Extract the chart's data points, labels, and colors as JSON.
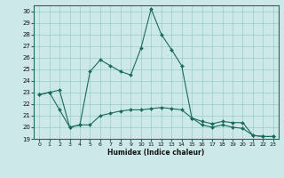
{
  "xlabel": "Humidex (Indice chaleur)",
  "background_color": "#cce8e8",
  "grid_color": "#99cccc",
  "line_color": "#1a6b5a",
  "xlim": [
    -0.5,
    23.5
  ],
  "ylim": [
    19,
    30.5
  ],
  "yticks": [
    19,
    20,
    21,
    22,
    23,
    24,
    25,
    26,
    27,
    28,
    29,
    30
  ],
  "xticks": [
    0,
    1,
    2,
    3,
    4,
    5,
    6,
    7,
    8,
    9,
    10,
    11,
    12,
    13,
    14,
    15,
    16,
    17,
    18,
    19,
    20,
    21,
    22,
    23
  ],
  "series1_x": [
    0,
    1,
    2,
    3,
    4,
    5,
    6,
    7,
    8,
    9,
    10,
    11,
    12,
    13,
    14,
    15,
    16,
    17,
    18,
    19,
    20,
    21,
    22,
    23
  ],
  "series1_y": [
    22.8,
    23.0,
    23.2,
    20.0,
    20.2,
    24.8,
    25.8,
    25.3,
    24.8,
    24.5,
    26.8,
    30.2,
    28.0,
    26.7,
    25.3,
    20.8,
    20.5,
    20.3,
    20.5,
    20.4,
    20.4,
    19.3,
    19.2,
    19.2
  ],
  "series2_x": [
    0,
    1,
    2,
    3,
    4,
    5,
    6,
    7,
    8,
    9,
    10,
    11,
    12,
    13,
    14,
    15,
    16,
    17,
    18,
    19,
    20,
    21,
    22,
    23
  ],
  "series2_y": [
    22.8,
    23.0,
    21.5,
    20.0,
    20.2,
    20.2,
    21.0,
    21.2,
    21.4,
    21.5,
    21.5,
    21.6,
    21.7,
    21.6,
    21.5,
    20.8,
    20.2,
    20.0,
    20.2,
    20.0,
    19.9,
    19.3,
    19.2,
    19.2
  ]
}
